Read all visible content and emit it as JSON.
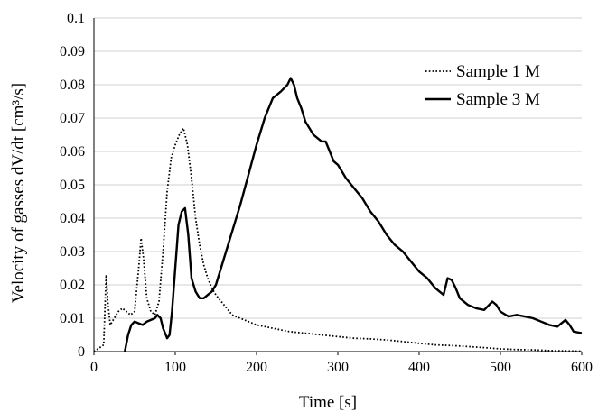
{
  "chart_data": {
    "type": "line",
    "xlabel": "Time  [s]",
    "ylabel": "Velocity of gasses dV/dt  [cm³/s]",
    "xlim": [
      0,
      600
    ],
    "ylim": [
      0,
      0.1
    ],
    "x_ticks": [
      "0",
      "100",
      "200",
      "300",
      "400",
      "500",
      "600"
    ],
    "y_ticks": [
      "0",
      "0.01",
      "0.02",
      "0.03",
      "0.04",
      "0.05",
      "0.06",
      "0.07",
      "0.08",
      "0.09",
      "0.1"
    ],
    "grid": "horizontal",
    "legend_position": "top-right",
    "series": [
      {
        "name": "Sample 1 M",
        "style": "dotted",
        "color": "#000000",
        "points": [
          [
            0,
            0
          ],
          [
            6,
            0.001
          ],
          [
            12,
            0.002
          ],
          [
            15,
            0.023
          ],
          [
            17,
            0.015
          ],
          [
            20,
            0.008
          ],
          [
            25,
            0.01
          ],
          [
            30,
            0.012
          ],
          [
            35,
            0.013
          ],
          [
            40,
            0.012
          ],
          [
            45,
            0.011
          ],
          [
            50,
            0.012
          ],
          [
            55,
            0.025
          ],
          [
            58,
            0.034
          ],
          [
            61,
            0.028
          ],
          [
            65,
            0.016
          ],
          [
            70,
            0.012
          ],
          [
            75,
            0.011
          ],
          [
            80,
            0.015
          ],
          [
            85,
            0.03
          ],
          [
            90,
            0.048
          ],
          [
            95,
            0.058
          ],
          [
            100,
            0.062
          ],
          [
            105,
            0.065
          ],
          [
            110,
            0.067
          ],
          [
            115,
            0.062
          ],
          [
            120,
            0.052
          ],
          [
            125,
            0.04
          ],
          [
            130,
            0.032
          ],
          [
            135,
            0.026
          ],
          [
            140,
            0.022
          ],
          [
            145,
            0.019
          ],
          [
            150,
            0.017
          ],
          [
            160,
            0.014
          ],
          [
            170,
            0.011
          ],
          [
            180,
            0.01
          ],
          [
            190,
            0.009
          ],
          [
            200,
            0.008
          ],
          [
            220,
            0.007
          ],
          [
            240,
            0.006
          ],
          [
            260,
            0.0055
          ],
          [
            280,
            0.005
          ],
          [
            300,
            0.0045
          ],
          [
            320,
            0.004
          ],
          [
            340,
            0.0038
          ],
          [
            360,
            0.0035
          ],
          [
            380,
            0.003
          ],
          [
            400,
            0.0025
          ],
          [
            420,
            0.002
          ],
          [
            440,
            0.0018
          ],
          [
            460,
            0.0015
          ],
          [
            480,
            0.0012
          ],
          [
            500,
            0.0008
          ],
          [
            520,
            0.0006
          ],
          [
            540,
            0.0005
          ],
          [
            560,
            0.0003
          ],
          [
            580,
            0.0002
          ],
          [
            600,
            0.0001
          ]
        ]
      },
      {
        "name": "Sample 3 M",
        "style": "solid",
        "color": "#000000",
        "points": [
          [
            38,
            0
          ],
          [
            42,
            0.005
          ],
          [
            46,
            0.008
          ],
          [
            50,
            0.009
          ],
          [
            55,
            0.0085
          ],
          [
            60,
            0.008
          ],
          [
            65,
            0.009
          ],
          [
            70,
            0.0095
          ],
          [
            75,
            0.01
          ],
          [
            78,
            0.011
          ],
          [
            82,
            0.01
          ],
          [
            85,
            0.007
          ],
          [
            90,
            0.004
          ],
          [
            93,
            0.005
          ],
          [
            96,
            0.012
          ],
          [
            100,
            0.025
          ],
          [
            104,
            0.038
          ],
          [
            108,
            0.042
          ],
          [
            112,
            0.043
          ],
          [
            116,
            0.035
          ],
          [
            120,
            0.022
          ],
          [
            125,
            0.018
          ],
          [
            130,
            0.016
          ],
          [
            135,
            0.016
          ],
          [
            140,
            0.017
          ],
          [
            145,
            0.018
          ],
          [
            150,
            0.02
          ],
          [
            160,
            0.028
          ],
          [
            170,
            0.036
          ],
          [
            180,
            0.044
          ],
          [
            190,
            0.053
          ],
          [
            200,
            0.062
          ],
          [
            210,
            0.07
          ],
          [
            220,
            0.076
          ],
          [
            230,
            0.078
          ],
          [
            238,
            0.08
          ],
          [
            242,
            0.082
          ],
          [
            246,
            0.08
          ],
          [
            250,
            0.076
          ],
          [
            255,
            0.073
          ],
          [
            260,
            0.069
          ],
          [
            265,
            0.067
          ],
          [
            270,
            0.065
          ],
          [
            275,
            0.064
          ],
          [
            280,
            0.063
          ],
          [
            285,
            0.063
          ],
          [
            290,
            0.06
          ],
          [
            295,
            0.057
          ],
          [
            300,
            0.056
          ],
          [
            310,
            0.052
          ],
          [
            320,
            0.049
          ],
          [
            330,
            0.046
          ],
          [
            340,
            0.042
          ],
          [
            350,
            0.039
          ],
          [
            360,
            0.035
          ],
          [
            370,
            0.032
          ],
          [
            380,
            0.03
          ],
          [
            390,
            0.027
          ],
          [
            400,
            0.024
          ],
          [
            410,
            0.022
          ],
          [
            420,
            0.019
          ],
          [
            430,
            0.017
          ],
          [
            435,
            0.022
          ],
          [
            440,
            0.0215
          ],
          [
            445,
            0.019
          ],
          [
            450,
            0.016
          ],
          [
            460,
            0.014
          ],
          [
            470,
            0.013
          ],
          [
            480,
            0.0125
          ],
          [
            490,
            0.015
          ],
          [
            495,
            0.014
          ],
          [
            500,
            0.012
          ],
          [
            510,
            0.0105
          ],
          [
            520,
            0.011
          ],
          [
            530,
            0.0105
          ],
          [
            540,
            0.01
          ],
          [
            550,
            0.009
          ],
          [
            560,
            0.008
          ],
          [
            570,
            0.0075
          ],
          [
            575,
            0.0085
          ],
          [
            580,
            0.0095
          ],
          [
            585,
            0.008
          ],
          [
            590,
            0.006
          ],
          [
            600,
            0.0055
          ]
        ]
      }
    ]
  }
}
